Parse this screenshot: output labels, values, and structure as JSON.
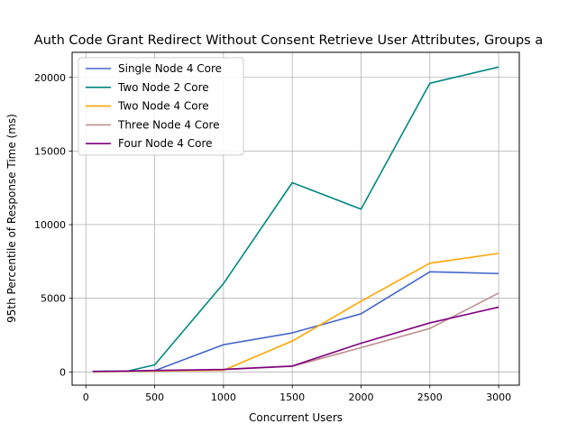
{
  "chart_data": {
    "type": "line",
    "title": "Auth Code Grant Redirect Without Consent Retrieve User Attributes, Groups a",
    "xlabel": "Concurrent Users",
    "ylabel": "95th Percentile of Response Time (ms)",
    "xlim": [
      -100,
      3150
    ],
    "ylim": [
      -900,
      21700
    ],
    "xticks": [
      0,
      500,
      1000,
      1500,
      2000,
      2500,
      3000
    ],
    "yticks": [
      0,
      5000,
      10000,
      15000,
      20000
    ],
    "grid": true,
    "legend_position": "top-left",
    "x": [
      50,
      300,
      500,
      1000,
      1500,
      2000,
      2500,
      3000
    ],
    "series": [
      {
        "name": "Single Node 4 Core",
        "color": "#4466cc",
        "values": [
          40,
          50,
          90,
          1850,
          2650,
          3950,
          6800,
          6680
        ]
      },
      {
        "name": "Two Node 2 Core",
        "color": "#00877f",
        "values": [
          30,
          50,
          480,
          6000,
          12850,
          11050,
          19600,
          20700
        ]
      },
      {
        "name": "Two Node 4 Core",
        "color": "#ffa500",
        "values": [
          20,
          30,
          60,
          110,
          2100,
          4800,
          7380,
          8050
        ]
      },
      {
        "name": "Three Node 4 Core",
        "color": "#bc8f8f",
        "values": [
          20,
          40,
          80,
          160,
          380,
          1650,
          2950,
          5350
        ]
      },
      {
        "name": "Four Node 4 Core",
        "color": "#800080",
        "values": [
          30,
          60,
          100,
          170,
          400,
          1950,
          3330,
          4400
        ]
      }
    ]
  }
}
